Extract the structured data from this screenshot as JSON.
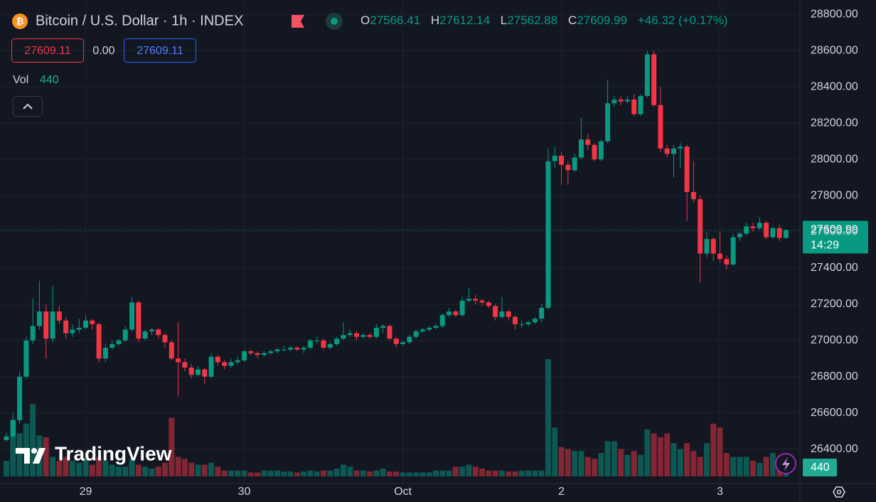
{
  "header": {
    "symbol": "Bitcoin / U.S. Dollar · 1h · INDEX",
    "ohlc_labels": [
      "O",
      "H",
      "L",
      "C"
    ],
    "change": "+46.32 (+0.17%)",
    "sell": "27609.11",
    "spread": "0.00",
    "buy": "27609.11",
    "vol_label": "Vol",
    "logo": "TradingView"
  },
  "chart_data": {
    "type": "candlestick",
    "countdown": "14:29",
    "open": [
      26450,
      26470,
      26560,
      26800,
      27000,
      27080,
      27160,
      27010,
      27160,
      27110,
      27040,
      27060,
      27070,
      27110,
      27090,
      26900,
      26960,
      26980,
      27000,
      27060,
      27210,
      27010,
      27050,
      27060,
      27030,
      26990,
      26900,
      26880,
      26850,
      26810,
      26840,
      26800,
      26910,
      26880,
      26860,
      26880,
      26890,
      26940,
      26930,
      26920,
      26930,
      26940,
      26950,
      26950,
      26960,
      26950,
      26960,
      27000,
      27000,
      26960,
      26980,
      27010,
      27030,
      27040,
      27020,
      27030,
      27020,
      27070,
      27080,
      27010,
      26980,
      26990,
      27020,
      27050,
      27060,
      27070,
      27080,
      27140,
      27160,
      27140,
      27220,
      27230,
      27220,
      27210,
      27190,
      27130,
      27160,
      27130,
      27090,
      27090,
      27100,
      27120,
      27180,
      27990,
      28020,
      27970,
      27940,
      28010,
      28110,
      28080,
      28000,
      28100,
      28310,
      28330,
      28320,
      28330,
      28250,
      28350,
      28580,
      28300,
      28060,
      28030,
      28060,
      28070,
      27820,
      27780,
      27480,
      27560,
      27480,
      27450,
      27420,
      27570,
      27590,
      27630,
      27620,
      27650,
      27570,
      27620,
      27566.41
    ],
    "high": [
      26490,
      26600,
      26830,
      27020,
      27230,
      27330,
      27200,
      27300,
      27190,
      27130,
      27090,
      27120,
      27140,
      27120,
      27100,
      26980,
      27000,
      27010,
      27080,
      27240,
      27220,
      27060,
      27070,
      27070,
      27040,
      27000,
      27100,
      26900,
      26870,
      26860,
      26850,
      26930,
      26920,
      26890,
      26900,
      26910,
      26950,
      26950,
      26940,
      26940,
      26950,
      26960,
      26970,
      26970,
      26970,
      26970,
      27010,
      27020,
      27010,
      26990,
      27020,
      27100,
      27060,
      27050,
      27040,
      27040,
      27090,
      27090,
      27090,
      27020,
      27000,
      27030,
      27060,
      27070,
      27080,
      27090,
      27150,
      27180,
      27170,
      27240,
      27290,
      27250,
      27230,
      27220,
      27200,
      27240,
      27170,
      27140,
      27110,
      27110,
      27130,
      27200,
      28060,
      28070,
      28040,
      27990,
      28030,
      28230,
      28140,
      28090,
      28110,
      28440,
      28350,
      28350,
      28350,
      28360,
      28360,
      28600,
      28600,
      28400,
      28080,
      28080,
      28090,
      28080,
      27990,
      27800,
      27600,
      27570,
      27600,
      27470,
      27590,
      27600,
      27650,
      27650,
      27680,
      27660,
      27630,
      27640,
      27612.14
    ],
    "low": [
      26440,
      26460,
      26540,
      26790,
      26980,
      27060,
      26900,
      26990,
      27090,
      27010,
      27020,
      27040,
      27060,
      27060,
      26880,
      26880,
      26950,
      26970,
      26990,
      27050,
      26990,
      27000,
      27030,
      27010,
      26960,
      26890,
      26690,
      26830,
      26790,
      26800,
      26760,
      26790,
      26860,
      26840,
      26850,
      26870,
      26880,
      26920,
      26900,
      26910,
      26920,
      26930,
      26940,
      26940,
      26940,
      26930,
      26950,
      26980,
      26950,
      26950,
      26970,
      27000,
      27020,
      27000,
      27010,
      27010,
      27010,
      27040,
      27000,
      26960,
      26970,
      26980,
      27010,
      27040,
      27050,
      27060,
      27070,
      27130,
      27130,
      27130,
      27210,
      27200,
      27190,
      27180,
      27110,
      27120,
      27110,
      27060,
      27070,
      27080,
      27090,
      27100,
      27170,
      27950,
      27860,
      27860,
      27930,
      28000,
      28050,
      27990,
      27990,
      28090,
      28290,
      28300,
      28310,
      28240,
      28240,
      28340,
      28290,
      28040,
      28010,
      27900,
      27950,
      27660,
      27760,
      27320,
      27460,
      27440,
      27430,
      27390,
      27410,
      27550,
      27580,
      27600,
      27610,
      27560,
      27560,
      27550,
      27562.88
    ],
    "close": [
      26470,
      26560,
      26800,
      27000,
      27080,
      27160,
      27010,
      27160,
      27110,
      27040,
      27060,
      27070,
      27110,
      27090,
      26900,
      26960,
      26980,
      27000,
      27060,
      27210,
      27010,
      27050,
      27060,
      27030,
      26990,
      26900,
      26880,
      26850,
      26810,
      26840,
      26800,
      26910,
      26880,
      26860,
      26880,
      26890,
      26940,
      26930,
      26920,
      26930,
      26940,
      26950,
      26950,
      26960,
      26950,
      26960,
      27000,
      27000,
      26960,
      26980,
      27010,
      27030,
      27040,
      27020,
      27030,
      27020,
      27070,
      27080,
      27010,
      26980,
      26990,
      27020,
      27050,
      27060,
      27070,
      27080,
      27140,
      27160,
      27140,
      27220,
      27230,
      27220,
      27210,
      27190,
      27130,
      27160,
      27130,
      27090,
      27090,
      27100,
      27120,
      27180,
      27990,
      28020,
      27970,
      27940,
      28010,
      28110,
      28080,
      28000,
      28100,
      28310,
      28330,
      28320,
      28330,
      28250,
      28350,
      28580,
      28300,
      28060,
      28030,
      28060,
      28070,
      27820,
      27780,
      27480,
      27560,
      27480,
      27450,
      27420,
      27570,
      27590,
      27630,
      27620,
      27650,
      27570,
      27620,
      27566.41,
      27609.99
    ],
    "volume": [
      800,
      2900,
      2200,
      2700,
      3700,
      2100,
      2000,
      1000,
      800,
      1000,
      800,
      700,
      900,
      600,
      1000,
      800,
      600,
      500,
      500,
      900,
      600,
      500,
      400,
      500,
      700,
      3000,
      1000,
      900,
      700,
      600,
      600,
      700,
      500,
      300,
      300,
      300,
      300,
      200,
      200,
      300,
      300,
      300,
      250,
      250,
      200,
      250,
      300,
      250,
      300,
      300,
      400,
      600,
      500,
      300,
      300,
      250,
      300,
      400,
      250,
      250,
      200,
      200,
      200,
      200,
      200,
      300,
      300,
      300,
      500,
      500,
      600,
      500,
      400,
      300,
      300,
      300,
      250,
      250,
      300,
      300,
      300,
      300,
      6000,
      2500,
      1500,
      1400,
      1300,
      1300,
      1000,
      900,
      1200,
      1800,
      1800,
      1400,
      1100,
      1300,
      1100,
      2400,
      2200,
      2000,
      2200,
      1700,
      1400,
      1700,
      1300,
      1000,
      1700,
      2700,
      2500,
      1200,
      1000,
      1000,
      1000,
      800,
      700,
      1000,
      1200,
      700,
      440
    ],
    "xlim": [
      -0.97,
      120.1
    ],
    "ylim": [
      26210,
      28880
    ],
    "xticks": [
      {
        "value": 12,
        "label": "29"
      },
      {
        "value": 36,
        "label": "30"
      },
      {
        "value": 60,
        "label": "Oct"
      },
      {
        "value": 84,
        "label": "2"
      },
      {
        "value": 108,
        "label": "3"
      }
    ],
    "yticks": [
      {
        "value": 26400,
        "label": "26400.00"
      },
      {
        "value": 26600,
        "label": "26600.00"
      },
      {
        "value": 26800,
        "label": "26800.00"
      },
      {
        "value": 27000,
        "label": "27000.00"
      },
      {
        "value": 27200,
        "label": "27200.00"
      },
      {
        "value": 27400,
        "label": "27400.00"
      },
      {
        "value": 27600,
        "label": "27600.00"
      },
      {
        "value": 27800,
        "label": "27800.00"
      },
      {
        "value": 28000,
        "label": "28000.00"
      },
      {
        "value": 28200,
        "label": "28200.00"
      },
      {
        "value": 28400,
        "label": "28400.00"
      },
      {
        "value": 28600,
        "label": "28600.00"
      },
      {
        "value": 28800,
        "label": "28800.00"
      }
    ],
    "grid": true,
    "up_color": "#089981",
    "down_color": "#f23645"
  }
}
